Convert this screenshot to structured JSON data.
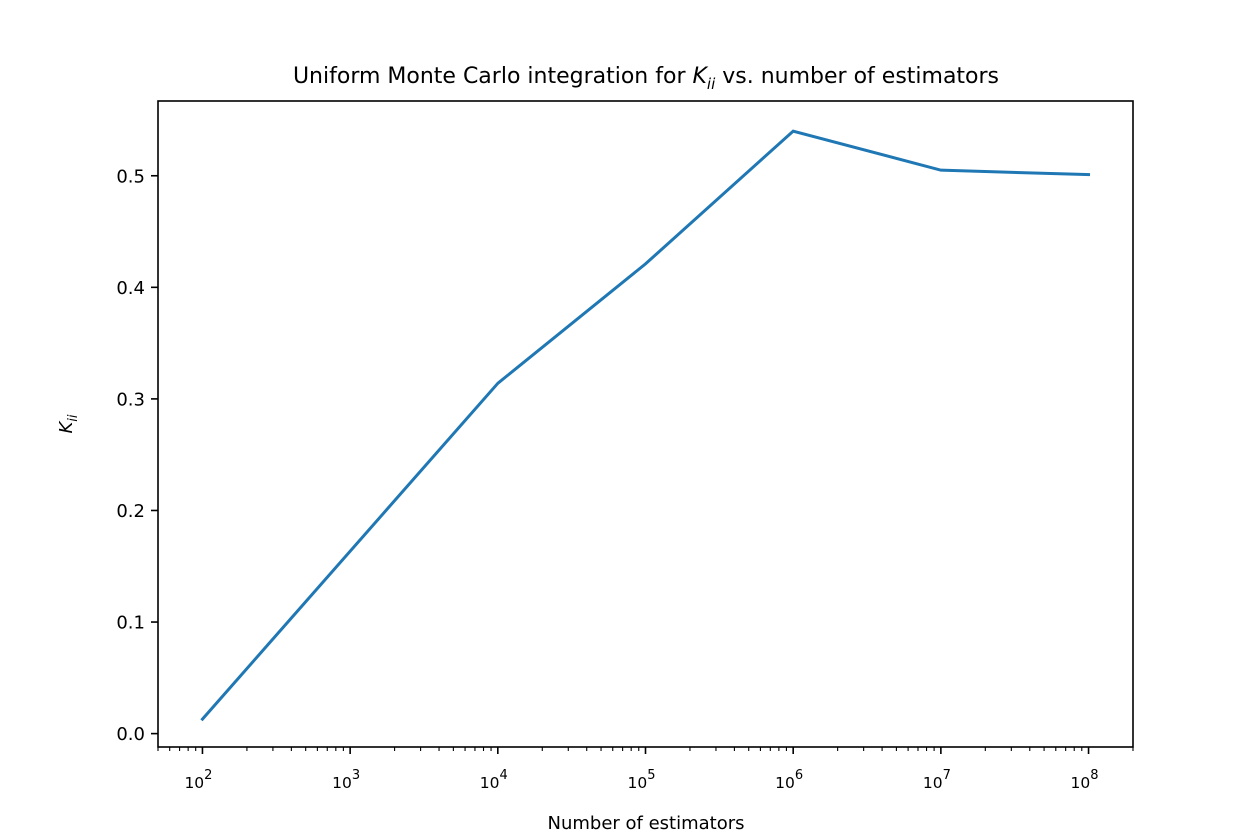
{
  "chart_data": {
    "type": "line",
    "title_prefix": "Uniform Monte Carlo integration for ",
    "title_symbol": "K",
    "title_subscript": "ii",
    "title_suffix": " vs. number of estimators",
    "xlabel": "Number of estimators",
    "ylabel_symbol": "K",
    "ylabel_subscript": "ii",
    "xscale": "log",
    "xlim": [
      50,
      200000000
    ],
    "ylim": [
      -0.012,
      0.567
    ],
    "x_ticks": [
      {
        "value": 100,
        "base": "10",
        "exp": "2"
      },
      {
        "value": 1000,
        "base": "10",
        "exp": "3"
      },
      {
        "value": 10000,
        "base": "10",
        "exp": "4"
      },
      {
        "value": 100000,
        "base": "10",
        "exp": "5"
      },
      {
        "value": 1000000,
        "base": "10",
        "exp": "6"
      },
      {
        "value": 10000000,
        "base": "10",
        "exp": "7"
      },
      {
        "value": 100000000,
        "base": "10",
        "exp": "8"
      }
    ],
    "y_ticks": [
      {
        "value": 0.0,
        "label": "0.0"
      },
      {
        "value": 0.1,
        "label": "0.1"
      },
      {
        "value": 0.2,
        "label": "0.2"
      },
      {
        "value": 0.3,
        "label": "0.3"
      },
      {
        "value": 0.4,
        "label": "0.4"
      },
      {
        "value": 0.5,
        "label": "0.5"
      }
    ],
    "grid": false,
    "series": [
      {
        "color": "#1f77b4",
        "x": [
          100,
          10000,
          100000,
          1000000,
          10000000,
          100000000
        ],
        "y": [
          0.013,
          0.314,
          0.421,
          0.54,
          0.505,
          0.501
        ]
      }
    ]
  }
}
